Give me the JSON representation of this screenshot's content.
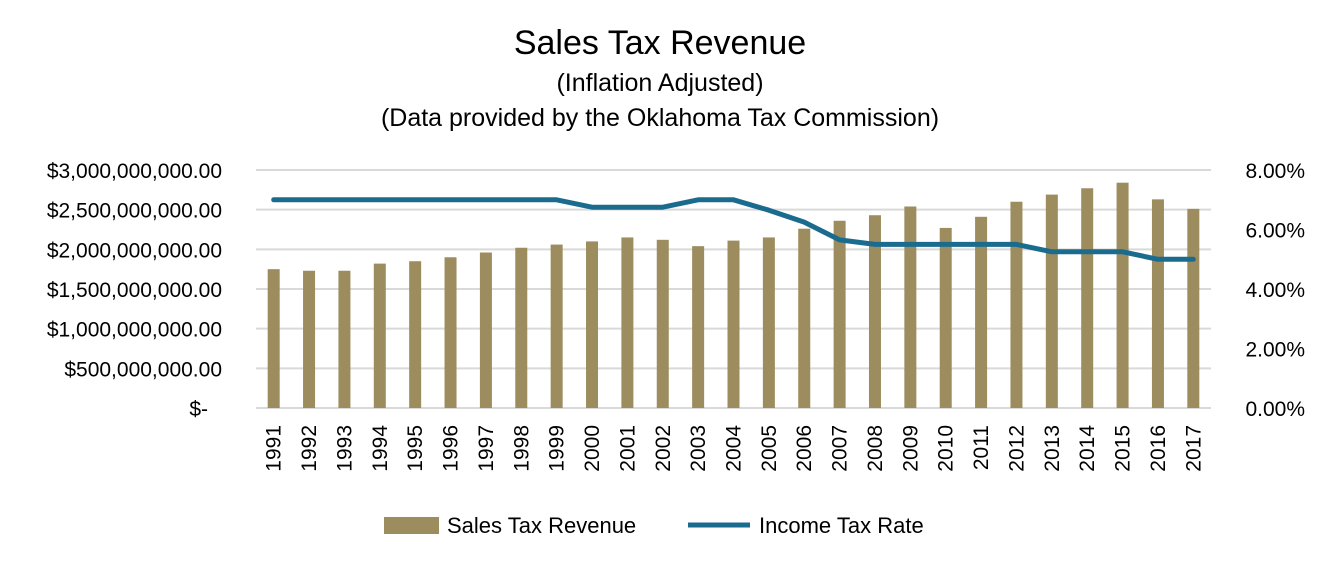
{
  "chart_data": {
    "type": "bar",
    "title": "Sales Tax Revenue",
    "subtitles": [
      "(Inflation Adjusted)",
      "(Data provided by the Oklahoma Tax Commission)"
    ],
    "categories": [
      "1991",
      "1992",
      "1993",
      "1994",
      "1995",
      "1996",
      "1997",
      "1998",
      "1999",
      "2000",
      "2001",
      "2002",
      "2003",
      "2004",
      "2005",
      "2006",
      "2007",
      "2008",
      "2009",
      "2010",
      "2011",
      "2012",
      "2013",
      "2014",
      "2015",
      "2016",
      "2017"
    ],
    "series": [
      {
        "name": "Sales Tax Revenue",
        "type": "bar",
        "axis": "left",
        "color": "#9c8c5e",
        "values": [
          1750000000,
          1730000000,
          1730000000,
          1820000000,
          1850000000,
          1900000000,
          1960000000,
          2020000000,
          2060000000,
          2100000000,
          2150000000,
          2120000000,
          2040000000,
          2110000000,
          2150000000,
          2260000000,
          2360000000,
          2430000000,
          2540000000,
          2270000000,
          2410000000,
          2600000000,
          2690000000,
          2770000000,
          2840000000,
          2630000000,
          2510000000
        ]
      },
      {
        "name": "Income Tax Rate",
        "type": "line",
        "axis": "right",
        "color": "#1b6b8f",
        "values": [
          7.0,
          7.0,
          7.0,
          7.0,
          7.0,
          7.0,
          7.0,
          7.0,
          7.0,
          6.75,
          6.75,
          6.75,
          7.0,
          7.0,
          6.65,
          6.25,
          5.65,
          5.5,
          5.5,
          5.5,
          5.5,
          5.5,
          5.25,
          5.25,
          5.25,
          5.0,
          5.0
        ]
      }
    ],
    "y_left": {
      "ylim": [
        0,
        3000000000
      ],
      "tick_labels": [
        "$-",
        "$500,000,000.00",
        "$1,000,000,000.00",
        "$1,500,000,000.00",
        "$2,000,000,000.00",
        "$2,500,000,000.00",
        "$3,000,000,000.00"
      ]
    },
    "y_right": {
      "ylim": [
        0,
        8
      ],
      "tick_labels": [
        "0.00%",
        "2.00%",
        "4.00%",
        "6.00%",
        "8.00%"
      ]
    },
    "grid": true,
    "legend": "bottom",
    "gridline_color": "#d9d9d9"
  }
}
